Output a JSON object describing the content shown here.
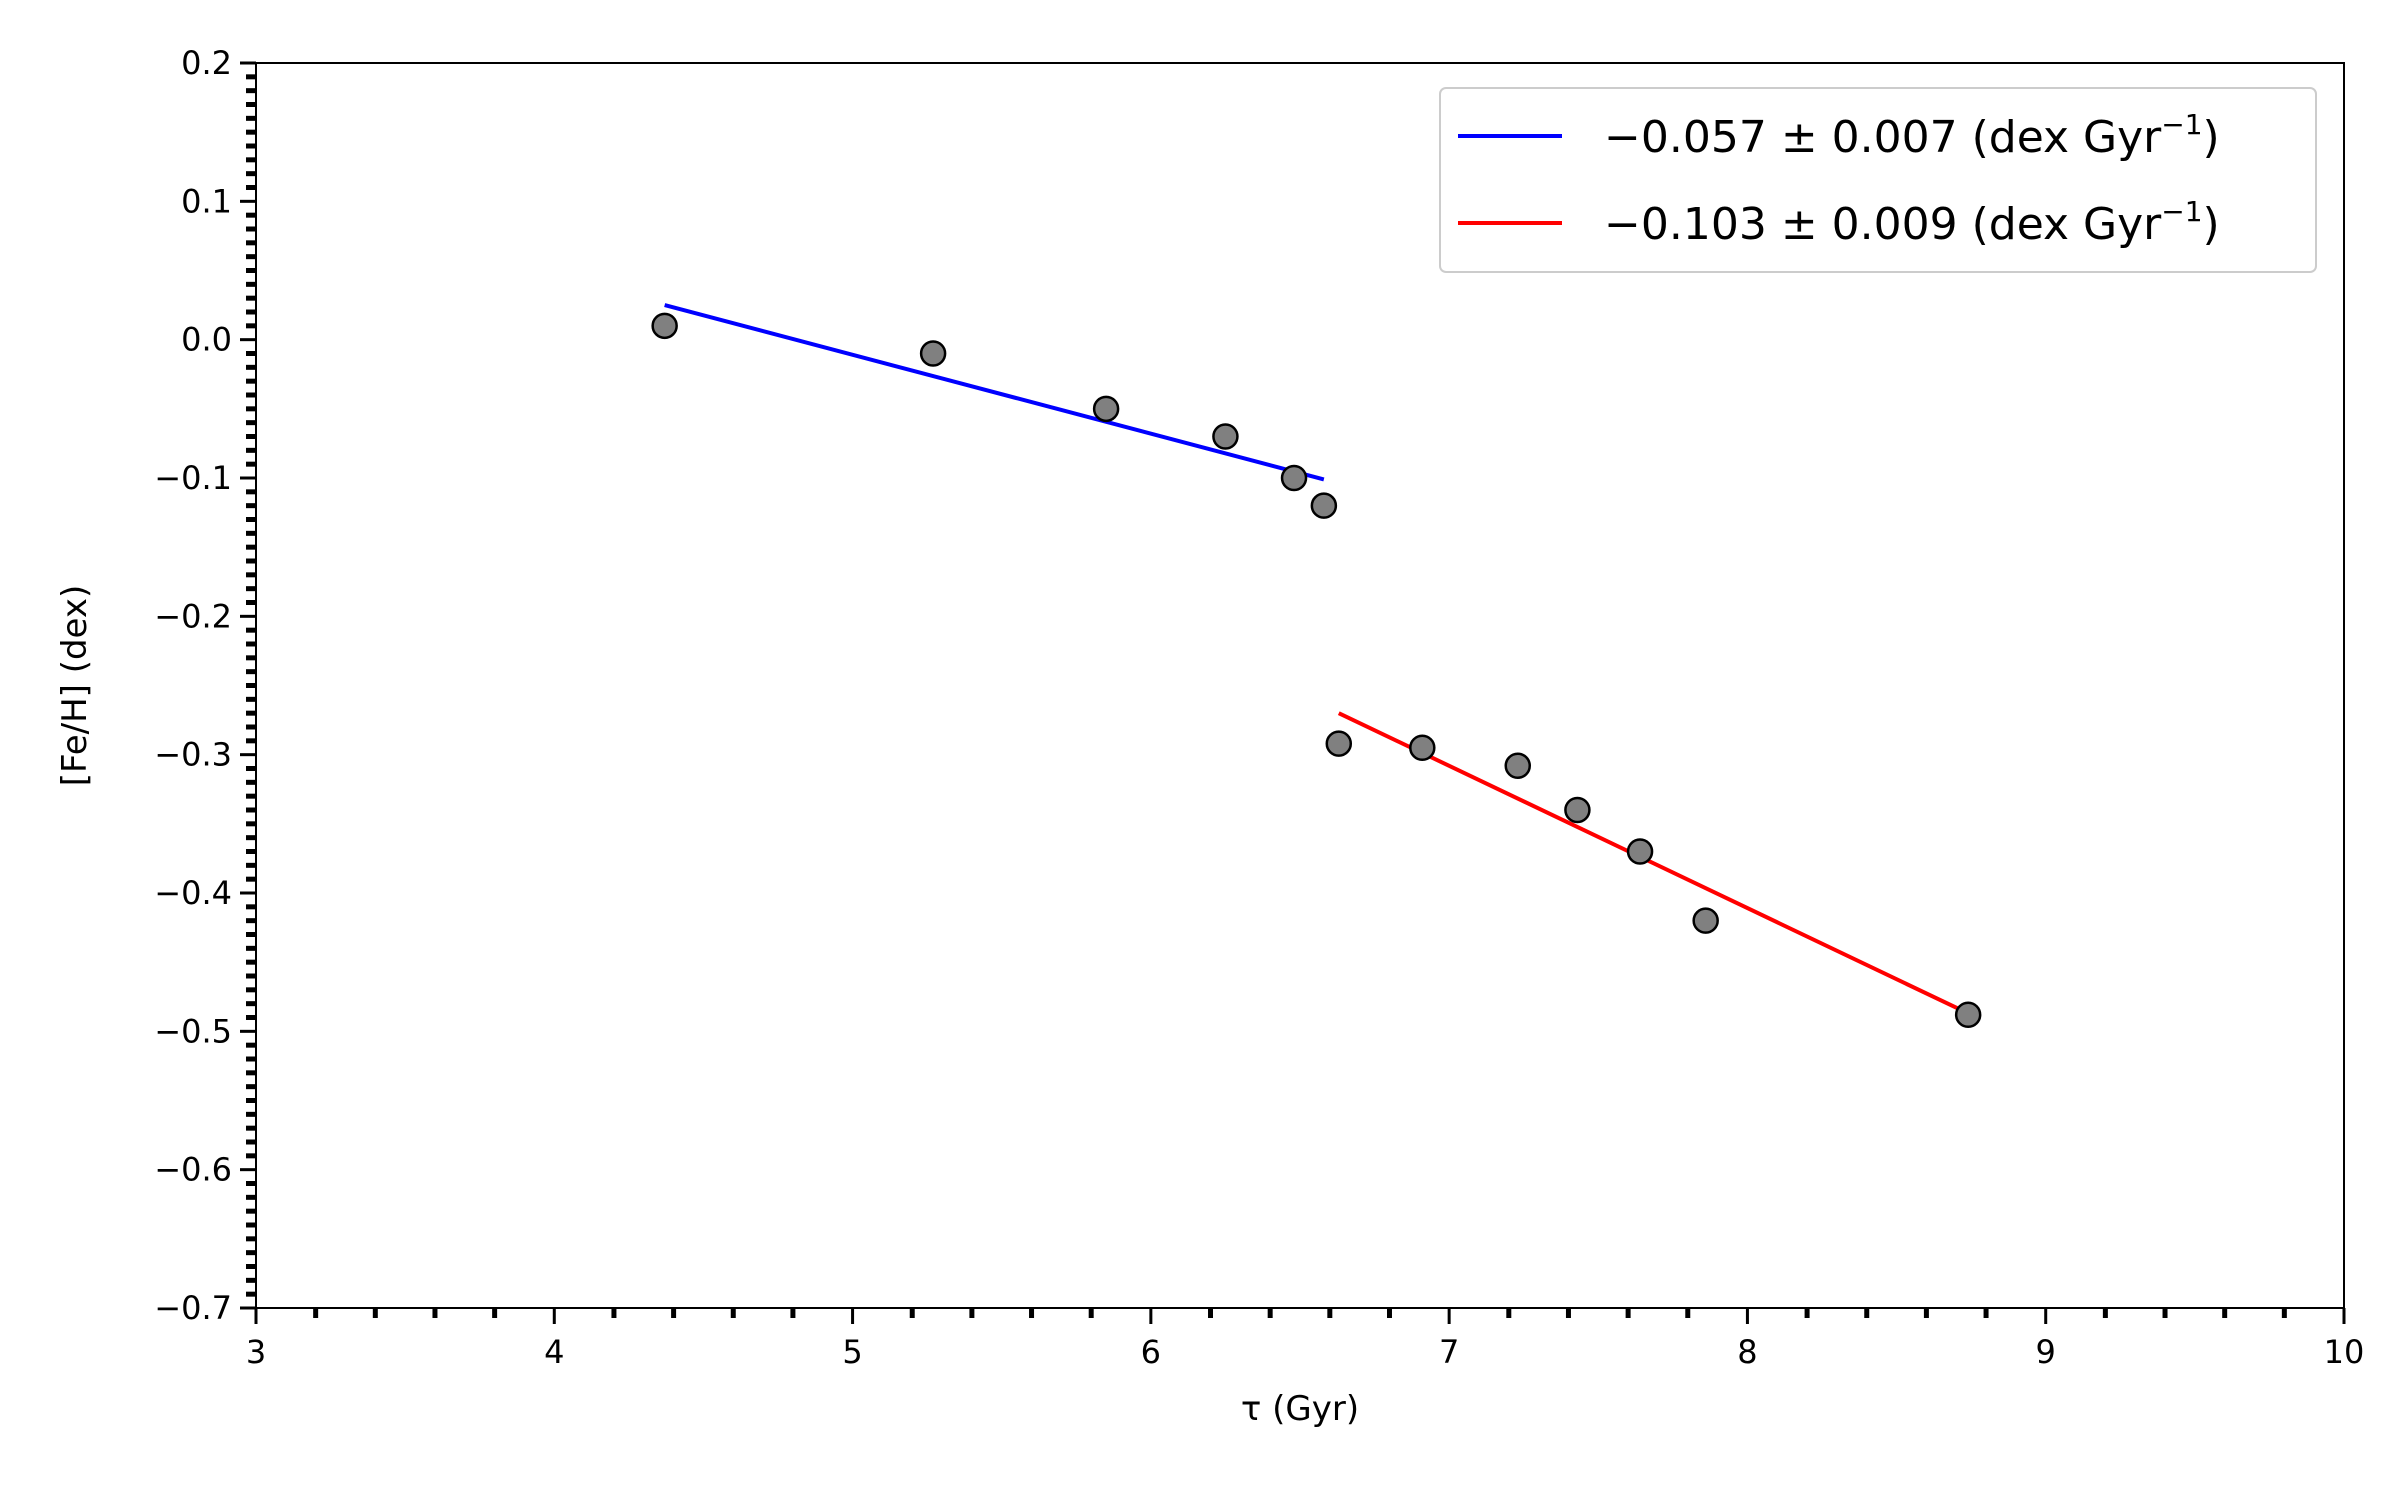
{
  "chart_data": {
    "type": "scatter",
    "title": "",
    "xlabel": "τ (Gyr)",
    "ylabel": "[Fe/H] (dex)",
    "xlim": [
      3,
      10
    ],
    "ylim": [
      -0.7,
      0.2
    ],
    "x_ticks": [
      3,
      4,
      5,
      6,
      7,
      8,
      9,
      10
    ],
    "x_tick_labels": [
      "3",
      "4",
      "5",
      "6",
      "7",
      "8",
      "9",
      "10"
    ],
    "y_ticks": [
      0.2,
      0.1,
      0.0,
      -0.1,
      -0.2,
      -0.3,
      -0.4,
      -0.5,
      -0.6,
      -0.7
    ],
    "y_tick_labels": [
      "0.2",
      "0.1",
      "0.0",
      "−0.1",
      "−0.2",
      "−0.3",
      "−0.4",
      "−0.5",
      "−0.6",
      "−0.7"
    ],
    "grid": false,
    "legend_position": "top-right",
    "points": [
      {
        "x": 4.37,
        "y": 0.01
      },
      {
        "x": 5.27,
        "y": -0.01
      },
      {
        "x": 5.85,
        "y": -0.05
      },
      {
        "x": 6.25,
        "y": -0.07
      },
      {
        "x": 6.48,
        "y": -0.1
      },
      {
        "x": 6.58,
        "y": -0.12
      },
      {
        "x": 6.63,
        "y": -0.292
      },
      {
        "x": 6.91,
        "y": -0.295
      },
      {
        "x": 7.23,
        "y": -0.308
      },
      {
        "x": 7.43,
        "y": -0.34
      },
      {
        "x": 7.64,
        "y": -0.37
      },
      {
        "x": 7.86,
        "y": -0.42
      },
      {
        "x": 8.74,
        "y": -0.488
      }
    ],
    "marker_color": "#808080",
    "fits": [
      {
        "name": "−0.057 ± 0.007 (dex Gyr",
        "superscript": "−1",
        "suffix": ")",
        "color": "#0000ff",
        "x": [
          4.37,
          6.58
        ],
        "y": [
          0.025,
          -0.101
        ]
      },
      {
        "name": "−0.103 ± 0.009 (dex Gyr",
        "superscript": "−1",
        "suffix": ")",
        "color": "#ff0000",
        "x": [
          6.63,
          8.74
        ],
        "y": [
          -0.27,
          -0.487
        ]
      }
    ]
  }
}
